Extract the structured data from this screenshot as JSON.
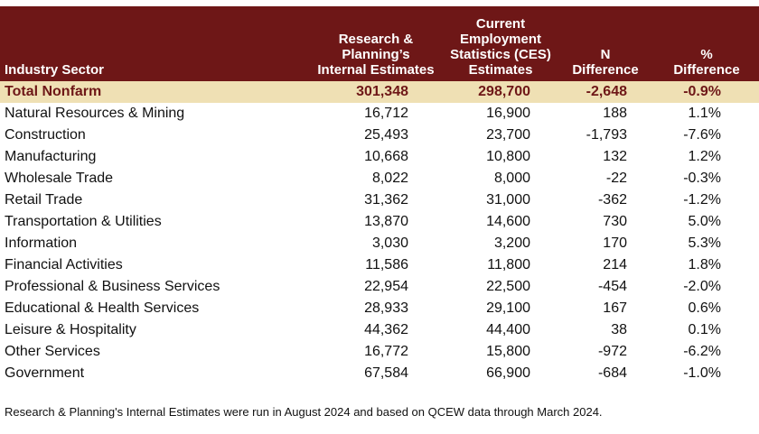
{
  "header": {
    "sector": "Industry Sector",
    "internal": [
      "Research &",
      "Planning’s",
      "Internal Estimates"
    ],
    "ces": [
      "Current",
      "Employment",
      "Statistics (CES)",
      "Estimates"
    ],
    "n_diff": [
      "N",
      "Difference"
    ],
    "pct_diff": [
      "%",
      "Difference"
    ]
  },
  "total": {
    "sector": "Total Nonfarm",
    "internal": "301,348",
    "ces": "298,700",
    "n_diff": "-2,648",
    "pct_diff": "-0.9%"
  },
  "rows": [
    {
      "sector": "Natural Resources & Mining",
      "internal": "16,712",
      "ces": "16,900",
      "n_diff": "188",
      "pct_diff": "1.1%"
    },
    {
      "sector": "Construction",
      "internal": "25,493",
      "ces": "23,700",
      "n_diff": "-1,793",
      "pct_diff": "-7.6%"
    },
    {
      "sector": "Manufacturing",
      "internal": "10,668",
      "ces": "10,800",
      "n_diff": "132",
      "pct_diff": "1.2%"
    },
    {
      "sector": "Wholesale Trade",
      "internal": "8,022",
      "ces": "8,000",
      "n_diff": "-22",
      "pct_diff": "-0.3%"
    },
    {
      "sector": "Retail Trade",
      "internal": "31,362",
      "ces": "31,000",
      "n_diff": "-362",
      "pct_diff": "-1.2%"
    },
    {
      "sector": "Transportation & Utilities",
      "internal": "13,870",
      "ces": "14,600",
      "n_diff": "730",
      "pct_diff": "5.0%"
    },
    {
      "sector": "Information",
      "internal": "3,030",
      "ces": "3,200",
      "n_diff": "170",
      "pct_diff": "5.3%"
    },
    {
      "sector": "Financial Activities",
      "internal": "11,586",
      "ces": "11,800",
      "n_diff": "214",
      "pct_diff": "1.8%"
    },
    {
      "sector": "Professional & Business Services",
      "internal": "22,954",
      "ces": "22,500",
      "n_diff": "-454",
      "pct_diff": "-2.0%"
    },
    {
      "sector": "Educational & Health Services",
      "internal": "28,933",
      "ces": "29,100",
      "n_diff": "167",
      "pct_diff": "0.6%"
    },
    {
      "sector": "Leisure & Hospitality",
      "internal": "44,362",
      "ces": "44,400",
      "n_diff": "38",
      "pct_diff": "0.1%"
    },
    {
      "sector": "Other Services",
      "internal": "16,772",
      "ces": "15,800",
      "n_diff": "-972",
      "pct_diff": "-6.2%"
    },
    {
      "sector": "Government",
      "internal": "67,584",
      "ces": "66,900",
      "n_diff": "-684",
      "pct_diff": "-1.0%"
    }
  ],
  "note": "Research & Planning's Internal Estimates were run in August 2024 and based on QCEW data through March 2024.",
  "colors": {
    "header_bg": "#6e1717",
    "total_bg": "#efe0b4",
    "total_text": "#6e1717"
  }
}
